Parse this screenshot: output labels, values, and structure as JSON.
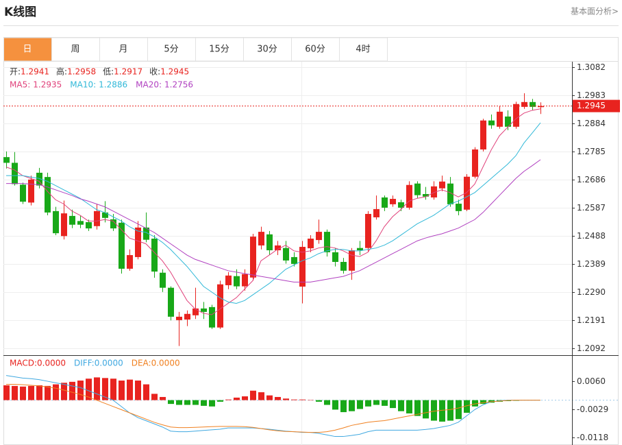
{
  "header": {
    "title": "K线图",
    "link": "基本面分析>"
  },
  "tabs": {
    "items": [
      "日",
      "周",
      "月",
      "5分",
      "15分",
      "30分",
      "60分",
      "4时"
    ],
    "active": 0
  },
  "chart_data": [
    {
      "type": "candlestick",
      "ohlc_legend": [
        {
          "name": "开:",
          "value": 1.2941
        },
        {
          "name": "高:",
          "value": 1.2958
        },
        {
          "name": "低:",
          "value": 1.2917
        },
        {
          "name": "收:",
          "value": 1.2945
        }
      ],
      "legend_color": "#e8231f",
      "up_color": "#e8231f",
      "down_color": "#18a818",
      "open": [
        1.2765,
        1.2745,
        1.2668,
        1.2605,
        1.271,
        1.2695,
        1.2575,
        1.2487,
        1.2558,
        1.254,
        1.2536,
        1.2522,
        1.257,
        1.2546,
        1.2534,
        1.2372,
        1.2413,
        1.2517,
        1.2478,
        1.2358,
        1.2305,
        1.2191,
        1.2193,
        1.2208,
        1.2232,
        1.2237,
        1.2165,
        1.2314,
        1.2346,
        1.231,
        1.2341,
        1.2454,
        1.2493,
        1.2437,
        1.2445,
        1.2413,
        1.2309,
        1.2444,
        1.2473,
        1.2502,
        1.243,
        1.2396,
        1.2365,
        1.2445,
        1.2445,
        1.2553,
        1.2623,
        1.2599,
        1.2606,
        1.2587,
        1.2672,
        1.2635,
        1.2623,
        1.2655,
        1.2672,
        1.2601,
        1.258,
        1.2696,
        1.2792,
        1.2894,
        1.2872,
        1.2908,
        1.2872,
        1.2942,
        1.2959,
        1.2941
      ],
      "high": [
        1.2785,
        1.2783,
        1.2675,
        1.27,
        1.2727,
        1.271,
        1.259,
        1.2612,
        1.258,
        1.256,
        1.2545,
        1.26,
        1.261,
        1.2565,
        1.2545,
        1.244,
        1.254,
        1.257,
        1.249,
        1.237,
        1.231,
        1.222,
        1.2225,
        1.2305,
        1.2255,
        1.2245,
        1.233,
        1.236,
        1.237,
        1.237,
        1.2495,
        1.252,
        1.2505,
        1.247,
        1.247,
        1.243,
        1.247,
        1.249,
        1.2545,
        1.251,
        1.2445,
        1.241,
        1.2445,
        1.247,
        1.2575,
        1.263,
        1.263,
        1.263,
        1.2615,
        1.268,
        1.268,
        1.266,
        1.268,
        1.27,
        1.2695,
        1.2615,
        1.2705,
        1.28,
        1.29,
        1.2915,
        1.2945,
        1.293,
        1.296,
        1.299,
        1.297,
        1.2958
      ],
      "low": [
        1.2725,
        1.2665,
        1.26,
        1.2595,
        1.2655,
        1.256,
        1.249,
        1.2475,
        1.2515,
        1.2515,
        1.2505,
        1.251,
        1.2535,
        1.2505,
        1.2355,
        1.2365,
        1.2405,
        1.2465,
        1.234,
        1.229,
        1.219,
        1.21,
        1.217,
        1.2195,
        1.2195,
        1.216,
        1.216,
        1.23,
        1.23,
        1.2295,
        1.233,
        1.244,
        1.242,
        1.242,
        1.239,
        1.238,
        1.225,
        1.243,
        1.246,
        1.2415,
        1.238,
        1.2355,
        1.2333,
        1.242,
        1.243,
        1.2545,
        1.2575,
        1.259,
        1.2575,
        1.258,
        1.262,
        1.2615,
        1.2615,
        1.2645,
        1.259,
        1.256,
        1.2575,
        1.269,
        1.2785,
        1.2865,
        1.2865,
        1.286,
        1.2865,
        1.2935,
        1.293,
        1.2917
      ],
      "close": [
        1.2745,
        1.267,
        1.2608,
        1.2686,
        1.2665,
        1.257,
        1.2497,
        1.2567,
        1.2527,
        1.2527,
        1.2514,
        1.2575,
        1.2551,
        1.2514,
        1.2372,
        1.242,
        1.2517,
        1.2474,
        1.2362,
        1.2305,
        1.2203,
        1.2203,
        1.2213,
        1.2232,
        1.222,
        1.2165,
        1.2317,
        1.2348,
        1.231,
        1.2353,
        1.2485,
        1.2502,
        1.2437,
        1.2454,
        1.2401,
        1.2389,
        1.2449,
        1.2478,
        1.2502,
        1.243,
        1.2396,
        1.2365,
        1.2437,
        1.2437,
        1.2565,
        1.2582,
        1.2587,
        1.2618,
        1.2587,
        1.2667,
        1.2631,
        1.2626,
        1.2662,
        1.2679,
        1.2599,
        1.2575,
        1.2696,
        1.2792,
        1.2894,
        1.2877,
        1.2925,
        1.2872,
        1.2952,
        1.2959,
        1.2942,
        1.2945
      ],
      "series": [
        {
          "name": "MA5:",
          "value": 1.2935,
          "color": "#e0407a",
          "values": [
            1.273,
            1.272,
            1.27,
            1.269,
            1.268,
            1.2645,
            1.2615,
            1.26,
            1.2575,
            1.256,
            1.254,
            1.254,
            1.2545,
            1.254,
            1.251,
            1.248,
            1.247,
            1.246,
            1.243,
            1.24,
            1.236,
            1.231,
            1.226,
            1.223,
            1.2215,
            1.221,
            1.223,
            1.225,
            1.227,
            1.23,
            1.233,
            1.24,
            1.242,
            1.244,
            1.2455,
            1.2435,
            1.243,
            1.2435,
            1.2445,
            1.245,
            1.2445,
            1.2435,
            1.242,
            1.2415,
            1.243,
            1.247,
            1.252,
            1.2555,
            1.258,
            1.261,
            1.262,
            1.2625,
            1.264,
            1.265,
            1.264,
            1.2625,
            1.264,
            1.267,
            1.273,
            1.279,
            1.284,
            1.287,
            1.29,
            1.292,
            1.293,
            1.2935
          ]
        },
        {
          "name": "MA10:",
          "value": 1.2886,
          "color": "#30b8d8",
          "values": [
            1.27,
            1.27,
            1.27,
            1.2695,
            1.269,
            1.268,
            1.2665,
            1.265,
            1.2635,
            1.262,
            1.26,
            1.258,
            1.257,
            1.2555,
            1.254,
            1.252,
            1.2505,
            1.25,
            1.2485,
            1.2465,
            1.244,
            1.241,
            1.238,
            1.2345,
            1.231,
            1.229,
            1.227,
            1.2255,
            1.225,
            1.226,
            1.228,
            1.23,
            1.232,
            1.2345,
            1.237,
            1.2385,
            1.24,
            1.241,
            1.2425,
            1.2435,
            1.244,
            1.244,
            1.2435,
            1.2435,
            1.244,
            1.2445,
            1.2455,
            1.247,
            1.249,
            1.251,
            1.253,
            1.2545,
            1.256,
            1.258,
            1.26,
            1.261,
            1.2625,
            1.264,
            1.2665,
            1.269,
            1.2715,
            1.274,
            1.277,
            1.2815,
            1.285,
            1.2886
          ]
        },
        {
          "name": "MA20:",
          "value": 1.2756,
          "color": "#b040c0",
          "values": [
            1.2672,
            1.2672,
            1.2672,
            1.267,
            1.2668,
            1.266,
            1.265,
            1.264,
            1.263,
            1.2618,
            1.261,
            1.26,
            1.259,
            1.2575,
            1.256,
            1.2545,
            1.253,
            1.2515,
            1.25,
            1.248,
            1.246,
            1.244,
            1.242,
            1.2405,
            1.2395,
            1.2385,
            1.2375,
            1.2365,
            1.236,
            1.2355,
            1.235,
            1.2345,
            1.234,
            1.2335,
            1.233,
            1.2325,
            1.2325,
            1.2325,
            1.233,
            1.2335,
            1.234,
            1.2345,
            1.2355,
            1.2365,
            1.238,
            1.2395,
            1.241,
            1.2425,
            1.244,
            1.2455,
            1.247,
            1.248,
            1.2488,
            1.2495,
            1.2505,
            1.2515,
            1.253,
            1.2545,
            1.257,
            1.26,
            1.263,
            1.266,
            1.269,
            1.2715,
            1.2735,
            1.2756
          ]
        }
      ],
      "last_price": 1.2945,
      "last_price_color": "#e8231f",
      "ylim": [
        1.207,
        1.3101
      ],
      "yticks": [
        1.3082,
        1.2983,
        1.2884,
        1.2785,
        1.2686,
        1.2587,
        1.2488,
        1.2389,
        {
          "value": 1.229,
          "label": "1.2290"
        },
        1.2191,
        1.2092
      ],
      "grid": true
    },
    {
      "type": "macd",
      "legend": [
        {
          "name": "MACD:",
          "value": 0,
          "value_label": "0.0000",
          "color": "#e8231f"
        },
        {
          "name": "DIFF:",
          "value": 0,
          "value_label": "0.0000",
          "color": "#3fa8e0"
        },
        {
          "name": "DEA:",
          "value": 0,
          "value_label": "0.0000",
          "color": "#f08020"
        }
      ],
      "up_color": "#e8231f",
      "down_color": "#18a818",
      "values": [
        0.0047,
        0.0045,
        0.0043,
        0.0045,
        0.0047,
        0.0045,
        0.005,
        0.0055,
        0.0058,
        0.0062,
        0.0068,
        0.0072,
        0.007,
        0.0068,
        0.0062,
        0.0065,
        0.0062,
        0.005,
        0.002,
        0.001,
        -0.0012,
        -0.0015,
        -0.0015,
        -0.0015,
        -0.0018,
        -0.002,
        -0.0005,
        0.0002,
        0.0008,
        0.0012,
        0.003,
        0.0025,
        0.0015,
        0.001,
        0.0005,
        0.0002,
        0.0002,
        0.0001,
        -0.0005,
        -0.0015,
        -0.003,
        -0.0038,
        -0.0035,
        -0.0028,
        -0.002,
        -0.0015,
        -0.0018,
        -0.0025,
        -0.0035,
        -0.0042,
        -0.005,
        -0.0058,
        -0.0065,
        -0.0068,
        -0.0065,
        -0.006,
        -0.004,
        -0.002,
        -0.0012,
        -0.0008,
        -0.0005,
        -0.0003,
        -0.0002,
        0,
        0,
        0
      ],
      "series": [
        {
          "name": "DIFF:",
          "color": "#3fa8e0",
          "values": [
            0.0078,
            0.0074,
            0.007,
            0.0068,
            0.0065,
            0.006,
            0.0055,
            0.005,
            0.0045,
            0.004,
            0.003,
            0.002,
            0.001,
            0.0,
            -0.002,
            -0.004,
            -0.0055,
            -0.0065,
            -0.0075,
            -0.0085,
            -0.0098,
            -0.01,
            -0.01,
            -0.0098,
            -0.0096,
            -0.0094,
            -0.0092,
            -0.0088,
            -0.0088,
            -0.0088,
            -0.0088,
            -0.009,
            -0.0092,
            -0.0095,
            -0.0098,
            -0.01,
            -0.0102,
            -0.0102,
            -0.0105,
            -0.011,
            -0.0115,
            -0.0115,
            -0.0112,
            -0.0108,
            -0.01,
            -0.0095,
            -0.0095,
            -0.0095,
            -0.0095,
            -0.0095,
            -0.0095,
            -0.0093,
            -0.009,
            -0.0085,
            -0.008,
            -0.007,
            -0.005,
            -0.003,
            -0.0015,
            -0.0005,
            -0.0002,
            0,
            0,
            0,
            0,
            0
          ]
        },
        {
          "name": "DEA:",
          "color": "#f08020",
          "values": [
            0.005,
            0.005,
            0.0049,
            0.0047,
            0.0045,
            0.0042,
            0.0038,
            0.0032,
            0.0025,
            0.0018,
            0.001,
            0.0,
            -0.001,
            -0.002,
            -0.003,
            -0.004,
            -0.005,
            -0.006,
            -0.007,
            -0.0078,
            -0.0085,
            -0.0087,
            -0.0087,
            -0.0086,
            -0.0085,
            -0.0084,
            -0.0083,
            -0.0083,
            -0.0083,
            -0.0084,
            -0.0086,
            -0.009,
            -0.0094,
            -0.0097,
            -0.0099,
            -0.01,
            -0.0101,
            -0.0102,
            -0.0102,
            -0.01,
            -0.0095,
            -0.0088,
            -0.008,
            -0.0075,
            -0.007,
            -0.0067,
            -0.0065,
            -0.006,
            -0.0055,
            -0.005,
            -0.0045,
            -0.004,
            -0.0035,
            -0.0032,
            -0.003,
            -0.0025,
            -0.0018,
            -0.0012,
            -0.0008,
            -0.0005,
            -0.0003,
            -0.0001,
            0,
            0,
            0,
            0
          ]
        }
      ],
      "ylim": [
        -0.0142,
        0.0138
      ],
      "yticks": [
        {
          "value": 0.006,
          "label": "0.0060"
        },
        -0.0029,
        -0.0118
      ],
      "zero_line": true
    }
  ]
}
